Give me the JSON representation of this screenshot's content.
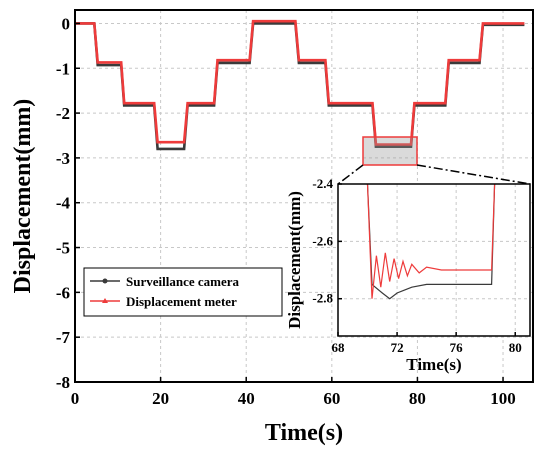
{
  "chart_data": [
    {
      "type": "line",
      "xlabel": "Time(s)",
      "ylabel": "Displacement(mm)",
      "xlim": [
        0,
        107
      ],
      "ylim": [
        -8,
        0.3
      ],
      "xticks": [
        0,
        20,
        40,
        60,
        80,
        100
      ],
      "yticks": [
        0,
        -1,
        -2,
        -3,
        -4,
        -5,
        -6,
        -7,
        -8
      ],
      "grid": true,
      "legend": "bottom-left",
      "series": [
        {
          "name": "Surveillance camera",
          "color": "#3a3a3a",
          "marker": "circle",
          "x": [
            0,
            4.5,
            5.3,
            10.8,
            11.5,
            18.5,
            19.3,
            25.5,
            26.3,
            32.5,
            33.3,
            40.8,
            41.6,
            51.5,
            52.3,
            58.5,
            59.3,
            69.5,
            70.3,
            78.5,
            79.3,
            86.5,
            87.3,
            94.5,
            95.3,
            105
          ],
          "y": [
            0,
            0,
            -0.93,
            -0.93,
            -1.83,
            -1.83,
            -2.8,
            -2.8,
            -1.83,
            -1.83,
            -0.88,
            -0.88,
            0,
            0,
            -0.88,
            -0.88,
            -1.83,
            -1.83,
            -2.75,
            -2.75,
            -1.83,
            -1.83,
            -0.88,
            -0.88,
            -0.03,
            -0.03
          ]
        },
        {
          "name": "Displacement meter",
          "color": "#ee3b3b",
          "marker": "triangle",
          "x": [
            0,
            4.5,
            5.3,
            10.8,
            11.5,
            18.5,
            19.3,
            25.5,
            26.3,
            32.5,
            33.3,
            40.8,
            41.6,
            51.5,
            52.3,
            58.5,
            59.3,
            69.5,
            70.3,
            78.5,
            79.3,
            86.5,
            87.3,
            94.5,
            95.3,
            105
          ],
          "y": [
            0,
            0,
            -0.87,
            -0.87,
            -1.78,
            -1.78,
            -2.65,
            -2.65,
            -1.78,
            -1.78,
            -0.82,
            -0.82,
            0.05,
            0.05,
            -0.82,
            -0.82,
            -1.78,
            -1.78,
            -2.7,
            -2.7,
            -1.78,
            -1.78,
            -0.82,
            -0.82,
            0,
            0
          ]
        }
      ]
    },
    {
      "type": "line",
      "xlabel": "Time(s)",
      "ylabel": "Displacement(mm)",
      "xlim": [
        68,
        81
      ],
      "ylim": [
        -2.93,
        -2.4
      ],
      "xticks": [
        68,
        72,
        76,
        80
      ],
      "yticks": [
        -2.4,
        -2.6,
        -2.8
      ],
      "grid": true,
      "series": [
        {
          "name": "Surveillance camera",
          "color": "#3a3a3a",
          "x": [
            70.0,
            70.3,
            71.0,
            71.5,
            72.0,
            72.5,
            73.0,
            74.0,
            76.0,
            78.0,
            78.4,
            78.6
          ],
          "y": [
            -2.4,
            -2.75,
            -2.78,
            -2.8,
            -2.78,
            -2.77,
            -2.76,
            -2.75,
            -2.75,
            -2.75,
            -2.75,
            -2.4
          ]
        },
        {
          "name": "Displacement meter",
          "color": "#ee3b3b",
          "x": [
            70.0,
            70.3,
            70.6,
            70.9,
            71.2,
            71.5,
            71.8,
            72.1,
            72.4,
            72.7,
            73.0,
            73.5,
            74.0,
            75.0,
            76.0,
            77.0,
            78.0,
            78.4,
            78.6
          ],
          "y": [
            -2.4,
            -2.8,
            -2.65,
            -2.76,
            -2.64,
            -2.74,
            -2.66,
            -2.73,
            -2.67,
            -2.72,
            -2.68,
            -2.71,
            -2.69,
            -2.7,
            -2.7,
            -2.7,
            -2.7,
            -2.7,
            -2.4
          ]
        }
      ]
    }
  ]
}
